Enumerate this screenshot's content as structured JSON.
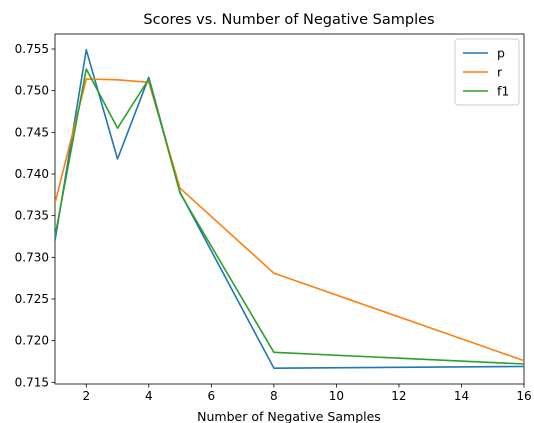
{
  "chart_data": {
    "type": "line",
    "title": "Scores vs. Number of Negative Samples",
    "xlabel": "Number of Negative Samples",
    "ylabel": "",
    "xlim": [
      1,
      16
    ],
    "ylim": [
      0.7148,
      0.7568
    ],
    "xticks": [
      2,
      4,
      6,
      8,
      10,
      12,
      14,
      16
    ],
    "yticks": [
      0.715,
      0.72,
      0.725,
      0.73,
      0.735,
      0.74,
      0.745,
      0.75,
      0.755
    ],
    "grid": false,
    "legend_position": "top-right",
    "x": [
      1,
      2,
      3,
      4,
      5,
      8,
      16
    ],
    "series": [
      {
        "name": "p",
        "color": "#1f77b4",
        "values": [
          0.732,
          0.7549,
          0.7418,
          0.7516,
          0.7378,
          0.7167,
          0.7169
        ]
      },
      {
        "name": "r",
        "color": "#ff7f0e",
        "values": [
          0.7365,
          0.7514,
          0.7513,
          0.751,
          0.7383,
          0.7281,
          0.7176
        ]
      },
      {
        "name": "f1",
        "color": "#2ca02c",
        "values": [
          0.7325,
          0.7526,
          0.7455,
          0.7514,
          0.7377,
          0.7186,
          0.7172
        ]
      }
    ]
  }
}
